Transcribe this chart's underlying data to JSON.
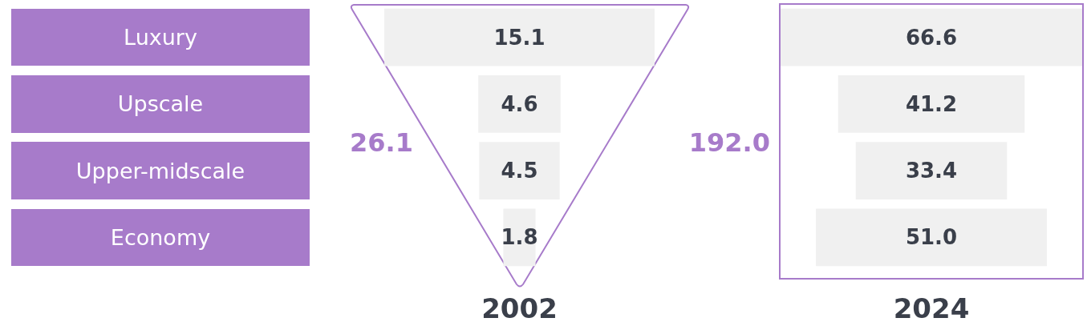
{
  "chart_data": [
    {
      "type": "other",
      "categories": [
        "Luxury",
        "Upscale",
        "Upper-midscale",
        "Economy"
      ],
      "values": [
        15.1,
        4.6,
        4.5,
        1.8
      ],
      "color": "#f0f0f0",
      "data_labels": true,
      "xlabel": "2002",
      "annotations": [
        "26.1"
      ]
    },
    {
      "type": "other",
      "categories": [
        null,
        null,
        null,
        null
      ],
      "values": [
        66.6,
        41.2,
        33.4,
        51.0
      ],
      "value_labels": [
        "66.6",
        "41.2",
        "33.4",
        "51.0"
      ],
      "color": "#f0f0f0",
      "xlabel": "2024",
      "annotations": [
        "192.0"
      ]
    }
  ]
}
